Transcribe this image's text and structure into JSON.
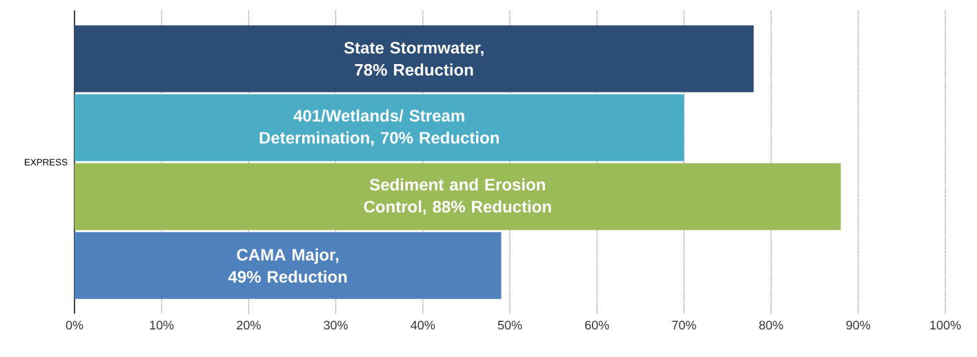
{
  "chart_data": {
    "type": "bar",
    "orientation": "horizontal",
    "ylabel": "EXPRESS",
    "categories": [
      "State Stormwater, 78% Reduction",
      "401/Wetlands/ Stream Determination, 70% Reduction",
      "Sediment and Erosion Control, 88% Reduction",
      "CAMA Major, 49% Reduction"
    ],
    "values": [
      78,
      70,
      88,
      49
    ],
    "colors": [
      "#2c4d75",
      "#4bacc6",
      "#9bbb59",
      "#4f81bd"
    ],
    "xlim": [
      0,
      100
    ],
    "xticks": [
      {
        "value": 0,
        "label": "0%"
      },
      {
        "value": 10,
        "label": "10%"
      },
      {
        "value": 20,
        "label": "20%"
      },
      {
        "value": 30,
        "label": "30%"
      },
      {
        "value": 40,
        "label": "40%"
      },
      {
        "value": 50,
        "label": "50%"
      },
      {
        "value": 60,
        "label": "60%"
      },
      {
        "value": 70,
        "label": "70%"
      },
      {
        "value": 80,
        "label": "80%"
      },
      {
        "value": 90,
        "label": "90%"
      },
      {
        "value": 100,
        "label": "100%"
      }
    ],
    "grid": "x"
  }
}
